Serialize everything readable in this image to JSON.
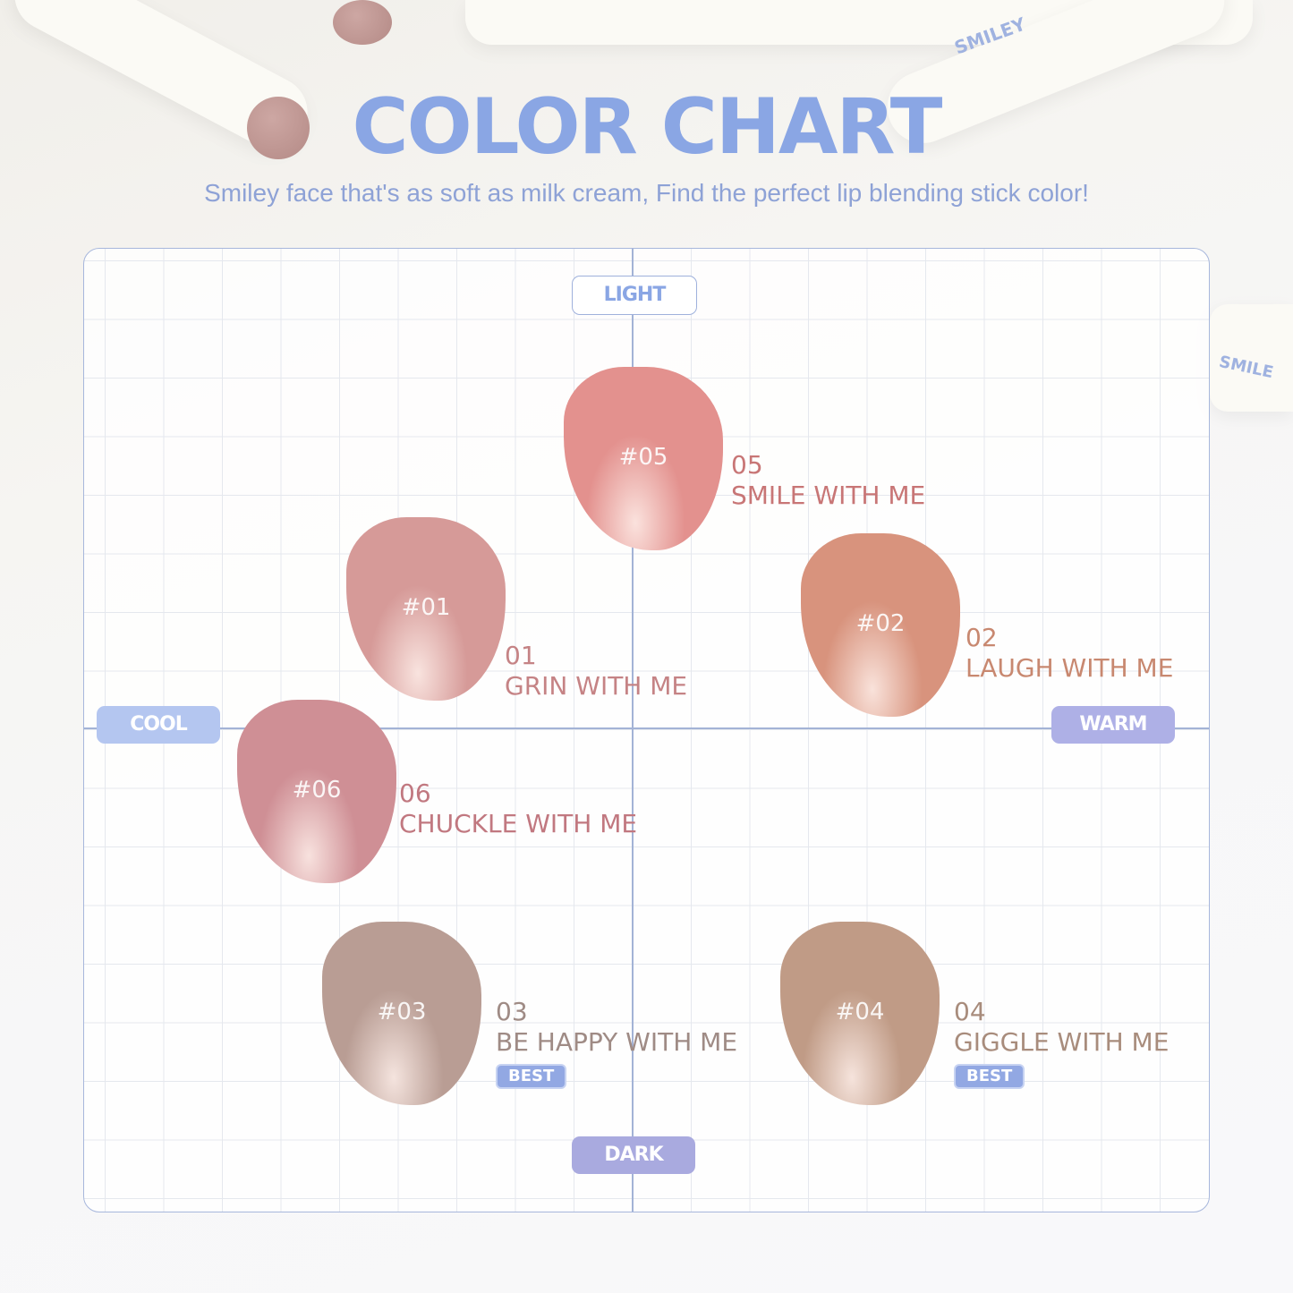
{
  "header": {
    "title": "COLOR CHART",
    "subtitle": "Smiley face that's as soft as milk cream, Find the perfect lip blending stick color!"
  },
  "background": {
    "product_brand_text": "SMILEY",
    "product_text_2": "SMILE"
  },
  "axes": {
    "top": "LIGHT",
    "bottom": "DARK",
    "left": "COOL",
    "right": "WARM"
  },
  "colors": {
    "accent": "#8aa6e4",
    "warm_pill": "#aeb0e6",
    "dark_pill": "#a9aadf",
    "cool_pill": "#b4c6f0"
  },
  "shades": [
    {
      "tag": "#05",
      "number": "05",
      "name": "SMILE WITH ME",
      "color": "#e3918e",
      "text_color": "#c87676",
      "best": null
    },
    {
      "tag": "#01",
      "number": "01",
      "name": "GRIN WITH ME",
      "color": "#d69a98",
      "text_color": "#c58385",
      "best": null
    },
    {
      "tag": "#02",
      "number": "02",
      "name": "LAUGH WITH ME",
      "color": "#d8937d",
      "text_color": "#c88870",
      "best": null
    },
    {
      "tag": "#06",
      "number": "06",
      "name": "CHUCKLE WITH ME",
      "color": "#cf8f95",
      "text_color": "#c17880",
      "best": null
    },
    {
      "tag": "#03",
      "number": "03",
      "name": "BE HAPPY WITH ME",
      "color": "#b99d94",
      "text_color": "#9f8b85",
      "best": "BEST"
    },
    {
      "tag": "#04",
      "number": "04",
      "name": "GIGGLE WITH ME",
      "color": "#c09b86",
      "text_color": "#a88c7c",
      "best": "BEST"
    }
  ]
}
